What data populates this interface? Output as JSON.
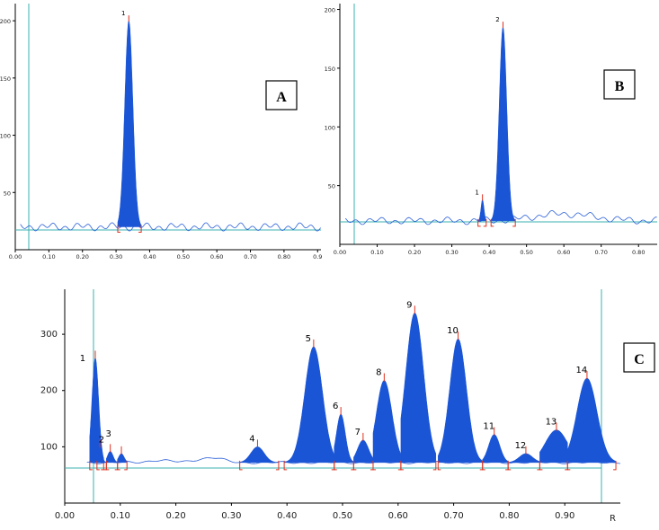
{
  "colors": {
    "fill": "#1a55d6",
    "trace": "#2a5fd8",
    "axis": "#3bb0b0",
    "marker": "#e0301e"
  },
  "chart_data": [
    {
      "type": "area",
      "panel_label": "A",
      "xlabel": "",
      "ylabel": "",
      "xlim": [
        0.0,
        0.91
      ],
      "ylim": [
        0,
        215
      ],
      "x_ticks": [
        "0.00",
        "0.10",
        "0.20",
        "0.30",
        "0.40",
        "0.50",
        "0.60",
        "0.70",
        "0.80",
        "0.9"
      ],
      "y_ticks": [
        "50",
        "100",
        "150",
        "200"
      ],
      "baseline": 20,
      "peaks": [
        {
          "label": "1",
          "x": 0.338,
          "height": 200,
          "sigma": 0.012,
          "start": 0.305,
          "end": 0.375
        }
      ]
    },
    {
      "type": "area",
      "panel_label": "B",
      "xlabel": "",
      "ylabel": "",
      "xlim": [
        0.0,
        0.85
      ],
      "ylim": [
        0,
        205
      ],
      "x_ticks": [
        "0.00",
        "0.10",
        "0.20",
        "0.30",
        "0.40",
        "0.50",
        "0.60",
        "0.70",
        "0.80"
      ],
      "y_ticks": [
        "50",
        "100",
        "150",
        "200"
      ],
      "baseline": 20,
      "peaks": [
        {
          "label": "1",
          "x": 0.382,
          "height": 38,
          "sigma": 0.004,
          "start": 0.37,
          "end": 0.392
        },
        {
          "label": "2",
          "x": 0.437,
          "height": 185,
          "sigma": 0.01,
          "start": 0.405,
          "end": 0.47
        }
      ]
    },
    {
      "type": "area",
      "panel_label": "C",
      "xlabel": "R",
      "ylabel": "",
      "xlim": [
        0.0,
        1.0
      ],
      "ylim": [
        0,
        380
      ],
      "x_ticks": [
        "0.00",
        "0.10",
        "0.20",
        "0.30",
        "0.40",
        "0.50",
        "0.60",
        "0.70",
        "0.80",
        "0.90"
      ],
      "y_ticks": [
        "100",
        "200",
        "300"
      ],
      "baseline": 72,
      "peaks": [
        {
          "label": "1",
          "x": 0.055,
          "height": 258,
          "sigma": 0.006,
          "start": 0.045,
          "end": 0.07
        },
        {
          "label": "2",
          "x": 0.063,
          "height": 100,
          "sigma": 0.004,
          "start": 0.058,
          "end": 0.075
        },
        {
          "label": "3",
          "x": 0.082,
          "height": 92,
          "sigma": 0.005,
          "start": 0.075,
          "end": 0.095
        },
        {
          "label": "",
          "x": 0.102,
          "height": 88,
          "sigma": 0.005,
          "start": 0.095,
          "end": 0.112
        },
        {
          "label": "4",
          "x": 0.347,
          "height": 100,
          "sigma": 0.012,
          "start": 0.315,
          "end": 0.385
        },
        {
          "label": "5",
          "x": 0.448,
          "height": 278,
          "sigma": 0.016,
          "start": 0.395,
          "end": 0.485
        },
        {
          "label": "6",
          "x": 0.497,
          "height": 158,
          "sigma": 0.008,
          "start": 0.485,
          "end": 0.52
        },
        {
          "label": "7",
          "x": 0.537,
          "height": 112,
          "sigma": 0.01,
          "start": 0.52,
          "end": 0.555
        },
        {
          "label": "8",
          "x": 0.575,
          "height": 218,
          "sigma": 0.014,
          "start": 0.555,
          "end": 0.605
        },
        {
          "label": "9",
          "x": 0.63,
          "height": 338,
          "sigma": 0.016,
          "start": 0.605,
          "end": 0.668
        },
        {
          "label": "10",
          "x": 0.708,
          "height": 292,
          "sigma": 0.015,
          "start": 0.672,
          "end": 0.752
        },
        {
          "label": "11",
          "x": 0.773,
          "height": 122,
          "sigma": 0.01,
          "start": 0.752,
          "end": 0.798
        },
        {
          "label": "12",
          "x": 0.83,
          "height": 88,
          "sigma": 0.012,
          "start": 0.798,
          "end": 0.855
        },
        {
          "label": "13",
          "x": 0.885,
          "height": 130,
          "sigma": 0.02,
          "start": 0.855,
          "end": 0.905
        },
        {
          "label": "14",
          "x": 0.94,
          "height": 222,
          "sigma": 0.018,
          "start": 0.905,
          "end": 0.992
        }
      ]
    }
  ]
}
